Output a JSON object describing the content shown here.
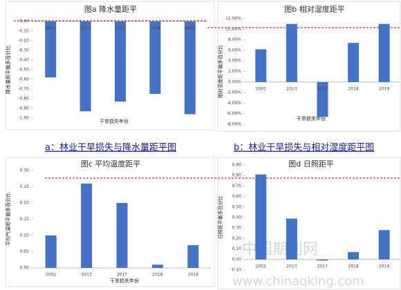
{
  "chart_data": [
    {
      "type": "bar",
      "title": "图a 降水量距平",
      "y_label": "降水量距平偏多百分比",
      "x_label": "干旱损失年份",
      "categories": [
        "2002",
        "2013",
        "2017",
        "2018",
        "2019"
      ],
      "values": [
        -0.58,
        -0.93,
        -0.83,
        -0.75,
        -0.96
      ],
      "color": "#4472c4",
      "ylim": [
        -1,
        0
      ],
      "yticks": [
        {
          "value": 0,
          "label": "0.00"
        },
        {
          "value": -0.1,
          "label": "-0.10"
        },
        {
          "value": -0.2,
          "label": "-0.20"
        },
        {
          "value": -0.3,
          "label": "-0.30"
        },
        {
          "value": -0.4,
          "label": "-0.40"
        },
        {
          "value": -0.5,
          "label": "-0.50"
        },
        {
          "value": -0.6,
          "label": "-0.60"
        },
        {
          "value": -0.7,
          "label": "-0.70"
        },
        {
          "value": -0.8,
          "label": "-0.80"
        },
        {
          "value": -0.9,
          "label": "-0.90"
        },
        {
          "value": -1,
          "label": "-1.00"
        }
      ]
    },
    {
      "type": "bar",
      "title": "图b 相对湿度距平",
      "y_label": "相对湿度距平偏多百分比",
      "x_label": "干旱损失年份",
      "categories": [
        "2002",
        "2013",
        "2017",
        "2018",
        "2019"
      ],
      "values": [
        6.2,
        11.0,
        -6.6,
        7.4,
        11.0
      ],
      "color": "#4472c4",
      "ylim": [
        -8,
        12
      ],
      "yticks": [
        {
          "value": 12,
          "label": "12.00%"
        },
        {
          "value": 10,
          "label": "10.00%"
        },
        {
          "value": 8,
          "label": "8.00%"
        },
        {
          "value": 6,
          "label": "6.00%"
        },
        {
          "value": 4,
          "label": "4.00%"
        },
        {
          "value": 2,
          "label": "2.00%"
        },
        {
          "value": 0,
          "label": "0.00%"
        },
        {
          "value": -2,
          "label": "-2.00%"
        },
        {
          "value": -4,
          "label": "-4.00%"
        },
        {
          "value": -6,
          "label": "-6.00%"
        },
        {
          "value": -8,
          "label": "-8.00%"
        }
      ]
    },
    {
      "type": "bar",
      "title": "图c 平均温度距平",
      "y_label": "平均气温距平偏多百分比",
      "x_label": "干旱损失年份",
      "categories": [
        "2002",
        "2013",
        "2017",
        "2018",
        "2019"
      ],
      "values": [
        0.1,
        0.26,
        0.2,
        0.01,
        0.07
      ],
      "color": "#4472c4",
      "ylim": [
        0,
        0.3
      ],
      "yticks": [
        {
          "value": 0,
          "label": "0.00"
        },
        {
          "value": 0.05,
          "label": "0.05"
        },
        {
          "value": 0.1,
          "label": "0.10"
        },
        {
          "value": 0.15,
          "label": "0.15"
        },
        {
          "value": 0.2,
          "label": "0.20"
        },
        {
          "value": 0.25,
          "label": "0.25"
        },
        {
          "value": 0.3,
          "label": "0.30"
        }
      ]
    },
    {
      "type": "bar",
      "title": "图d 日照距平",
      "y_label": "日照距平偏多百分比",
      "categories": [
        "2002",
        "2013",
        "2017",
        "2018",
        "2019"
      ],
      "values": [
        0.81,
        0.39,
        -0.01,
        0.07,
        0.28
      ],
      "color": "#4472c4",
      "ylim": [
        -0.1,
        0.9
      ],
      "yticks": [
        {
          "value": 0.9,
          "label": "0.90"
        },
        {
          "value": 0.8,
          "label": "0.80"
        },
        {
          "value": 0.7,
          "label": "0.70"
        },
        {
          "value": 0.6,
          "label": "0.60"
        },
        {
          "value": 0.5,
          "label": "0.50"
        },
        {
          "value": 0.4,
          "label": "0.40"
        },
        {
          "value": 0.3,
          "label": "0.30"
        },
        {
          "value": 0.2,
          "label": "0.20"
        },
        {
          "value": 0.1,
          "label": "0.10"
        },
        {
          "value": 0,
          "label": "0.00"
        },
        {
          "value": -0.1,
          "label": "-0.10"
        }
      ]
    }
  ],
  "captions": [
    "a：林业干旱损失与降水量距平图",
    "b：林业干旱损失与相对湿度距平图"
  ],
  "watermark": [
    "中国期刊网",
    "www.chinaqking.com"
  ]
}
